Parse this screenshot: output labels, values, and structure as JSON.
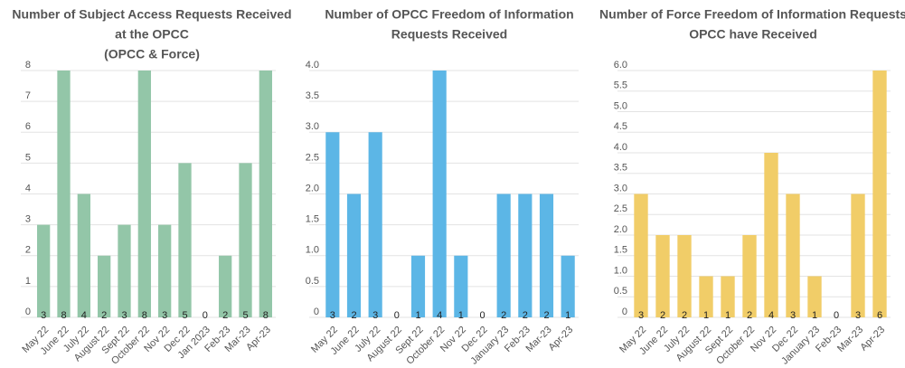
{
  "chart_data": [
    {
      "type": "bar",
      "title": [
        "Number of Subject Access Requests Received",
        "at the OPCC",
        "(OPCC & Force)"
      ],
      "categories": [
        "May 22",
        "June 22",
        "July 22",
        "August 22",
        "Sept 22",
        "October 22",
        "Nov 22",
        "Dec 22",
        "Jan 2023",
        "Feb-23",
        "Mar-23",
        "Apr-23"
      ],
      "values": [
        3,
        8,
        4,
        2,
        3,
        8,
        3,
        5,
        0,
        2,
        5,
        8
      ],
      "color": "#93c6a8",
      "ylim": [
        0,
        8
      ],
      "yticks": [
        0,
        1,
        2,
        3,
        4,
        5,
        6,
        7,
        8
      ],
      "grid": true
    },
    {
      "type": "bar",
      "title": [
        "Number of OPCC Freedom of Information",
        "Requests Received"
      ],
      "categories": [
        "May 22",
        "June 22",
        "July 22",
        "August 22",
        "Sept 22",
        "October 22",
        "Nov 22",
        "Dec 22",
        "January 23",
        "Feb-23",
        "Mar-23",
        "Apr-23"
      ],
      "values": [
        3,
        2,
        3,
        0,
        1,
        4,
        1,
        0,
        2,
        2,
        2,
        1
      ],
      "color": "#5cb6e6",
      "ylim": [
        0,
        4
      ],
      "yticks": [
        0,
        0.5,
        {
          "value": 1,
          "label": "1.0"
        },
        1.5,
        {
          "value": 2,
          "label": "2.0"
        },
        2.5,
        {
          "value": 3,
          "label": "3.0"
        },
        3.5,
        {
          "value": 4,
          "label": "4.0"
        }
      ],
      "grid": true
    },
    {
      "type": "bar",
      "title": [
        "Number of Force Freedom of Information Requests",
        "OPCC have Received"
      ],
      "categories": [
        "May 22",
        "June 22",
        "July 22",
        "August 22",
        "Sept 22",
        "October 22",
        "Nov 22",
        "Dec 22",
        "January 23",
        "Feb-23",
        "Mar-23",
        "Apr-23"
      ],
      "values": [
        3,
        2,
        2,
        1,
        1,
        2,
        4,
        3,
        1,
        0,
        3,
        6
      ],
      "color": "#f1cd68",
      "ylim": [
        0,
        6
      ],
      "yticks": [
        0,
        0.5,
        {
          "value": 1,
          "label": "1.0"
        },
        1.5,
        {
          "value": 2,
          "label": "2.0"
        },
        2.5,
        {
          "value": 3,
          "label": "3.0"
        },
        3.5,
        {
          "value": 4,
          "label": "4.0"
        },
        4.5,
        {
          "value": 5,
          "label": "5.0"
        },
        5.5,
        {
          "value": 6,
          "label": "6.0"
        }
      ],
      "grid": true
    }
  ]
}
